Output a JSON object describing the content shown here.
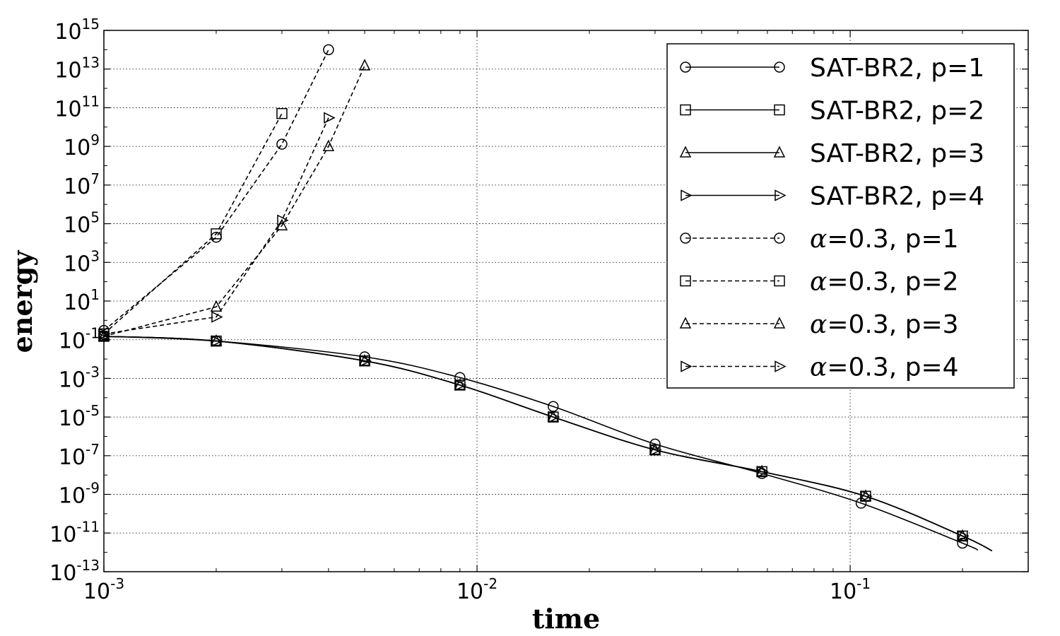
{
  "chart_data": {
    "type": "line",
    "title": "",
    "xlabel": "time",
    "ylabel": "energy",
    "x_scale": "log",
    "y_scale": "log",
    "xlim": [
      0.001,
      0.3
    ],
    "ylim": [
      1e-13,
      1000000000000000.0
    ],
    "grid": true,
    "legend_position": "top-right",
    "x_ticks": [
      {
        "base": "10",
        "exp": "-3",
        "value": 0.001
      },
      {
        "base": "10",
        "exp": "-2",
        "value": 0.01
      },
      {
        "base": "10",
        "exp": "-1",
        "value": 0.1
      }
    ],
    "y_ticks": [
      {
        "base": "10",
        "exp": "15",
        "value": 1000000000000000.0
      },
      {
        "base": "10",
        "exp": "13",
        "value": 10000000000000.0
      },
      {
        "base": "10",
        "exp": "11",
        "value": 100000000000.0
      },
      {
        "base": "10",
        "exp": "9",
        "value": 1000000000.0
      },
      {
        "base": "10",
        "exp": "7",
        "value": 10000000.0
      },
      {
        "base": "10",
        "exp": "5",
        "value": 100000.0
      },
      {
        "base": "10",
        "exp": "3",
        "value": 1000.0
      },
      {
        "base": "10",
        "exp": "1",
        "value": 10.0
      },
      {
        "base": "10",
        "exp": "-1",
        "value": 0.1
      },
      {
        "base": "10",
        "exp": "-3",
        "value": 0.001
      },
      {
        "base": "10",
        "exp": "-5",
        "value": 1e-05
      },
      {
        "base": "10",
        "exp": "-7",
        "value": 1e-07
      },
      {
        "base": "10",
        "exp": "-9",
        "value": 1e-09
      },
      {
        "base": "10",
        "exp": "-11",
        "value": 1e-11
      },
      {
        "base": "10",
        "exp": "-13",
        "value": 1e-13
      }
    ],
    "series": [
      {
        "name": "SAT-BR2, p=1",
        "prefix": "",
        "label": "SAT-BR2, p=1",
        "marker": "circle",
        "dash": false,
        "x": [
          0.001,
          0.002,
          0.005,
          0.009,
          0.016,
          0.03,
          0.058,
          0.107,
          0.2,
          0.22
        ],
        "y": [
          0.15,
          0.085,
          0.013,
          0.0011,
          3.5e-05,
          4e-07,
          1.2e-08,
          3.5e-10,
          3e-12,
          1.3e-12
        ],
        "marker_count": 9
      },
      {
        "name": "SAT-BR2, p=2",
        "prefix": "",
        "label": "SAT-BR2, p=2",
        "marker": "square",
        "dash": false,
        "x": [
          0.001,
          0.002,
          0.005,
          0.009,
          0.016,
          0.03,
          0.058,
          0.11,
          0.2,
          0.24
        ],
        "y": [
          0.15,
          0.085,
          0.008,
          0.00045,
          1e-05,
          2e-07,
          1.5e-08,
          8e-10,
          7e-12,
          1.2e-12
        ],
        "marker_count": 9
      },
      {
        "name": "SAT-BR2, p=3",
        "prefix": "",
        "label": "SAT-BR2, p=3",
        "marker": "triangle-up",
        "dash": false,
        "x": [
          0.001,
          0.002,
          0.005,
          0.009,
          0.016,
          0.03,
          0.058,
          0.11,
          0.2,
          0.24
        ],
        "y": [
          0.15,
          0.085,
          0.008,
          0.00045,
          1e-05,
          2e-07,
          1.5e-08,
          8e-10,
          7e-12,
          1.2e-12
        ],
        "marker_count": 9
      },
      {
        "name": "SAT-BR2, p=4",
        "prefix": "",
        "label": "SAT-BR2, p=4",
        "marker": "triangle-right",
        "dash": false,
        "x": [
          0.001,
          0.002,
          0.005,
          0.009,
          0.016,
          0.03,
          0.058,
          0.11,
          0.2,
          0.24
        ],
        "y": [
          0.15,
          0.085,
          0.008,
          0.00045,
          1e-05,
          2e-07,
          1.5e-08,
          8e-10,
          7e-12,
          1.2e-12
        ],
        "marker_count": 9
      },
      {
        "name": "α=0.3, p=1",
        "prefix": "α",
        "label": "=0.3, p=1",
        "marker": "circle",
        "dash": true,
        "x": [
          0.001,
          0.002,
          0.003,
          0.004
        ],
        "y": [
          0.3,
          20000,
          1300000000.0,
          100000000000000.0
        ],
        "marker_count": 4
      },
      {
        "name": "α=0.3, p=2",
        "prefix": "α",
        "label": "=0.3, p=2",
        "marker": "square",
        "dash": true,
        "x": [
          0.001,
          0.002,
          0.003
        ],
        "y": [
          0.2,
          30000,
          50000000000.0
        ],
        "marker_count": 3
      },
      {
        "name": "α=0.3, p=3",
        "prefix": "α",
        "label": "=0.3, p=3",
        "marker": "triangle-up",
        "dash": true,
        "x": [
          0.001,
          0.002,
          0.003,
          0.004,
          0.005
        ],
        "y": [
          0.15,
          5,
          80000,
          1000000000.0,
          15000000000000.0
        ],
        "marker_count": 5
      },
      {
        "name": "α=0.3, p=4",
        "prefix": "α",
        "label": "=0.3, p=4",
        "marker": "triangle-right",
        "dash": true,
        "x": [
          0.001,
          0.002,
          0.003,
          0.004
        ],
        "y": [
          0.2,
          1.5,
          150000,
          30000000000.0
        ],
        "marker_count": 4
      }
    ]
  }
}
